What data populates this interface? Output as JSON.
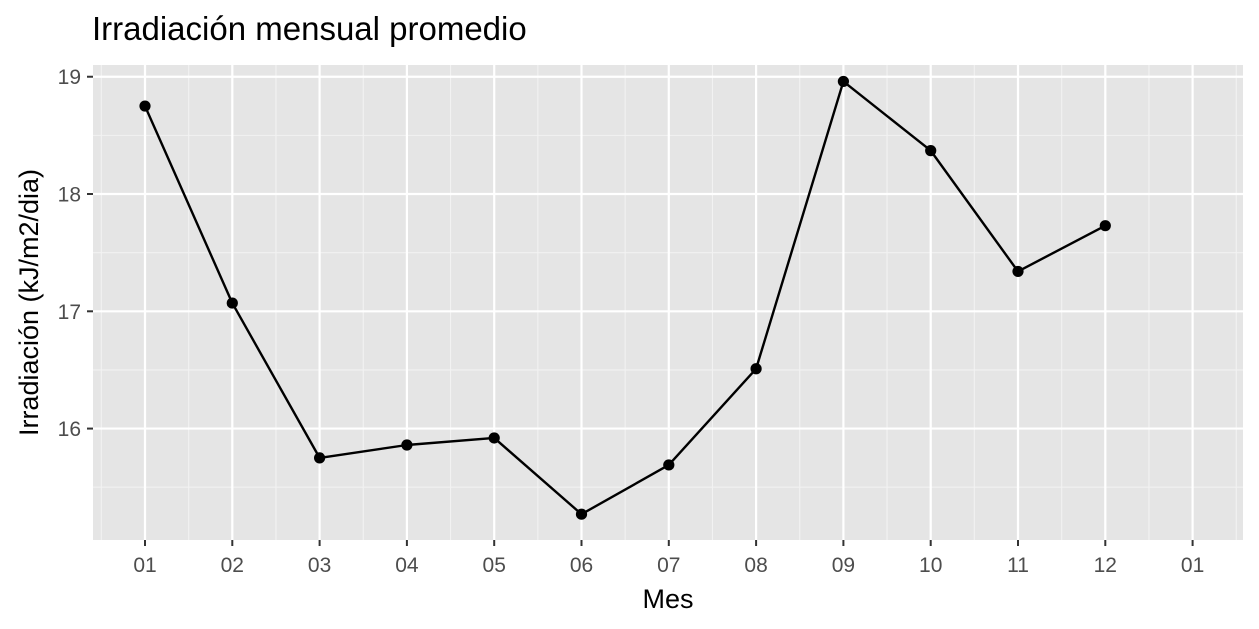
{
  "chart_data": {
    "type": "line",
    "title": "Irradiación mensual promedio",
    "xlabel": "Mes",
    "ylabel": "Irradiación (kJ/m2/dia)",
    "x_tick_labels": [
      "01",
      "02",
      "03",
      "04",
      "05",
      "06",
      "07",
      "08",
      "09",
      "10",
      "11",
      "12",
      "01"
    ],
    "y_ticks": [
      16,
      17,
      18,
      19
    ],
    "ylim": [
      15.05,
      19.1
    ],
    "grid": true,
    "panel_background": "#e5e5e5",
    "series": [
      {
        "color": "#000000",
        "x": [
          "01",
          "02",
          "03",
          "04",
          "05",
          "06",
          "07",
          "08",
          "09",
          "10",
          "11",
          "12"
        ],
        "values": [
          18.75,
          17.07,
          15.75,
          15.86,
          15.92,
          15.27,
          15.69,
          16.51,
          18.96,
          18.37,
          17.34,
          17.73
        ]
      }
    ]
  }
}
